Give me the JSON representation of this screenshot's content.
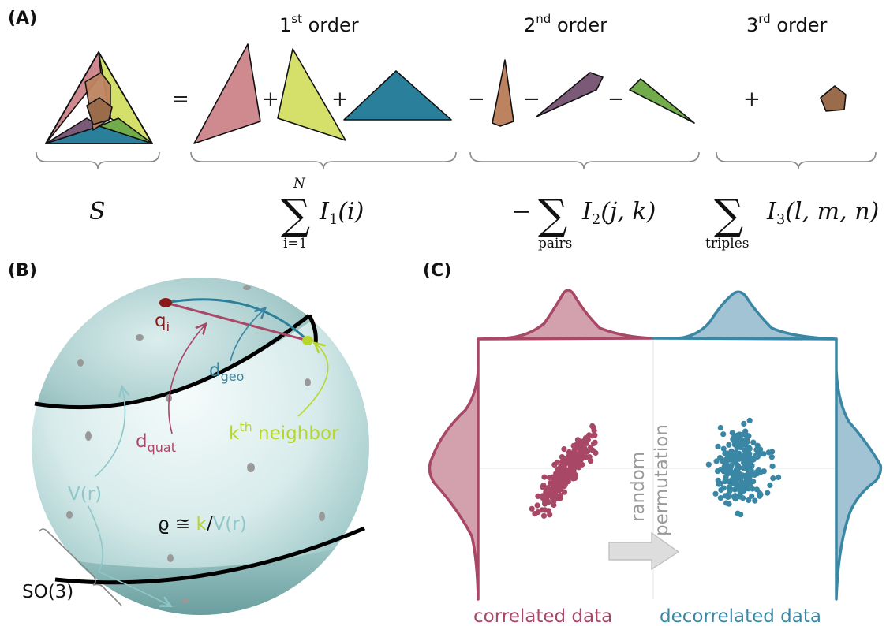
{
  "panels": {
    "a": "(A)",
    "b": "(B)",
    "c": "(C)"
  },
  "orders": {
    "first": {
      "num": "1",
      "sup": "st",
      "word": "order"
    },
    "second": {
      "num": "2",
      "sup": "nd",
      "word": "order"
    },
    "third": {
      "num": "3",
      "sup": "rd",
      "word": "order"
    }
  },
  "equation": {
    "equals": "=",
    "plus": "+",
    "minus": "−",
    "S": "S",
    "sum": "∑",
    "sum1_upper": "N",
    "sum1_lower": "i=1",
    "term1": "I",
    "term1_sub": "1",
    "term1_arg": "(i)",
    "sum2_lower": "pairs",
    "term2": "I",
    "term2_sub": "2",
    "term2_arg": "(j, k)",
    "sum3_lower": "triples",
    "term3": "I",
    "term3_sub": "3",
    "term3_arg": "(l, m, n)"
  },
  "sphere": {
    "q_main": "q",
    "q_sub": "i",
    "d_geo_main": "d",
    "d_geo_sub": "geo",
    "d_quat_main": "d",
    "d_quat_sub": "quat",
    "kth_main": "k",
    "kth_sup": "th",
    "kth_word": " neighbor",
    "V": "V(r)",
    "rho_left": "ϱ ≅ ",
    "rho_k": "k",
    "rho_slash": "/",
    "rho_V": "V(r)",
    "so3": "SO(3)"
  },
  "panel_c": {
    "arrow_label_1": "random",
    "arrow_label_2": "permutation",
    "left_caption": "correlated data",
    "right_caption": "decorrelated data"
  },
  "colors": {
    "pink": "#cf8a90",
    "yellow": "#d4e06a",
    "teal": "#2a809a",
    "orange": "#bd8360",
    "purple": "#7b5a78",
    "green": "#72ac4a",
    "brown": "#9b6c4c",
    "crimson": "#a84866",
    "steel": "#3a87a5",
    "lime": "#b6d62c",
    "darkred": "#8b1a1a",
    "light_teal": "#8fc7c9"
  }
}
